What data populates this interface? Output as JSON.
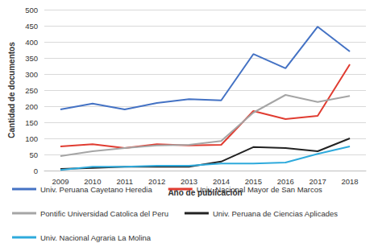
{
  "chart_data": {
    "type": "line",
    "x_label": "Año de publicación",
    "y_label": "Cantidad de documentos",
    "categories": [
      "2009",
      "2010",
      "2011",
      "2012",
      "2013",
      "2014",
      "2015",
      "2016",
      "2017",
      "2018"
    ],
    "series": [
      {
        "name": "Univ. Peruana Cayetano Heredia",
        "color": "#4472c4",
        "values": [
          190,
          208,
          190,
          210,
          222,
          218,
          362,
          318,
          447,
          370
        ]
      },
      {
        "name": "Univ. Nacional Mayor de San Marcos",
        "color": "#e03c31",
        "values": [
          75,
          82,
          70,
          82,
          78,
          80,
          185,
          160,
          170,
          330
        ]
      },
      {
        "name": "Pontific Universidad Catolica del Peru",
        "color": "#a5a5a5",
        "values": [
          45,
          60,
          70,
          78,
          80,
          92,
          180,
          235,
          213,
          232
        ]
      },
      {
        "name": "Univ. Peruana de Ciencias Aplicades",
        "color": "#222222",
        "values": [
          5,
          8,
          12,
          12,
          12,
          28,
          73,
          70,
          60,
          100
        ]
      },
      {
        "name": "Univ. Nacional Agraria La Molina",
        "color": "#2eaadc",
        "values": [
          2,
          12,
          12,
          15,
          15,
          22,
          22,
          25,
          52,
          75
        ]
      }
    ],
    "ylim": [
      0,
      500
    ],
    "yticks": [
      0,
      50,
      100,
      150,
      200,
      250,
      300,
      350,
      400,
      450,
      500
    ],
    "grid": true,
    "legend": "bottom"
  }
}
